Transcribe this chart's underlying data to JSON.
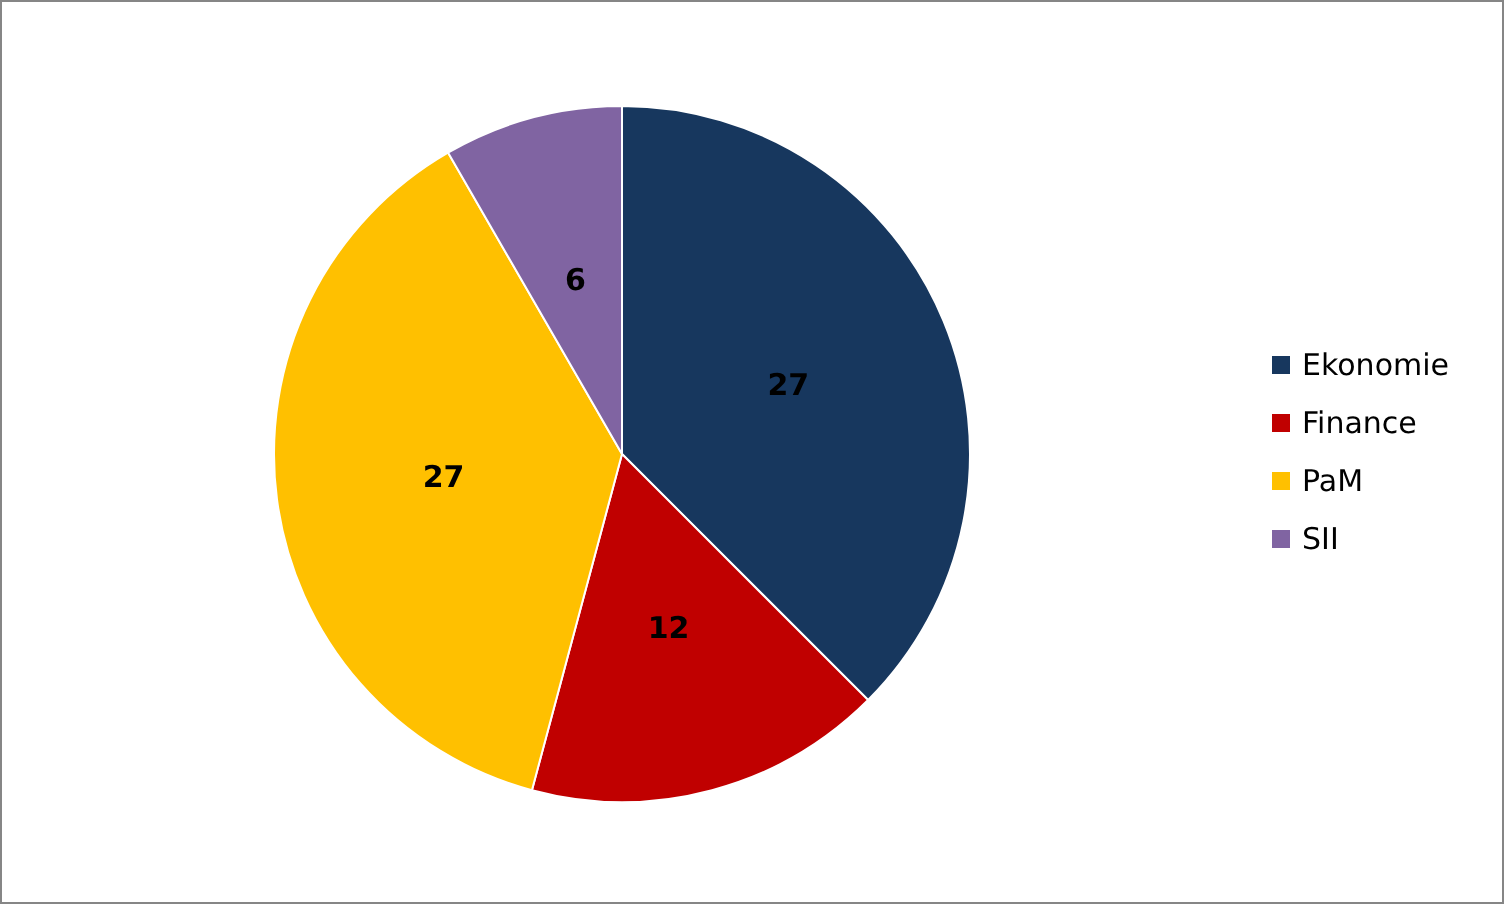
{
  "chart_data": {
    "type": "pie",
    "categories": [
      "Ekonomie",
      "Finance",
      "PaM",
      "SII"
    ],
    "values": [
      27,
      12,
      27,
      6
    ],
    "colors": [
      "#17375e",
      "#c00000",
      "#ffc000",
      "#8064a2"
    ],
    "data_labels": true,
    "legend": "right"
  }
}
